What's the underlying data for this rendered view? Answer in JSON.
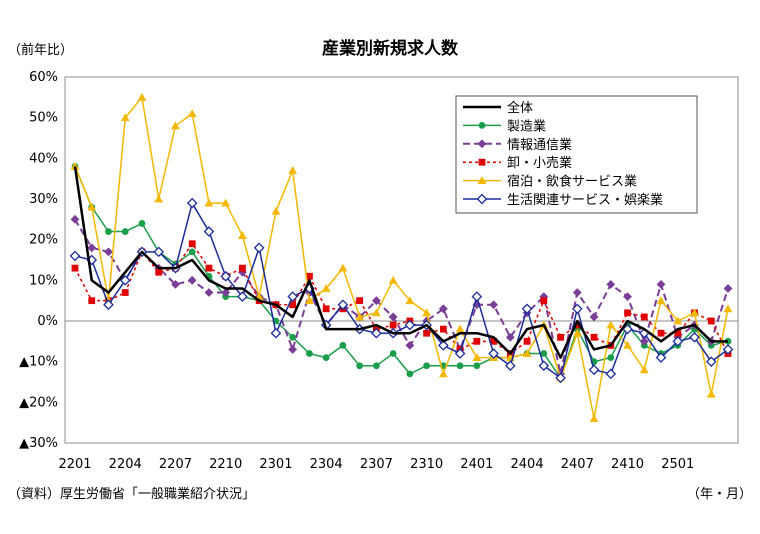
{
  "chart_data": {
    "type": "line",
    "title": "産業別新規求人数",
    "ylabel": "（前年比）",
    "xlabel": "（年・月）",
    "source": "（資料）厚生労働省「一般職業紹介状況」",
    "ylim": [
      -30,
      60
    ],
    "ytick_values": [
      60,
      50,
      40,
      30,
      20,
      10,
      0,
      -10,
      -20,
      -30
    ],
    "ytick_labels": [
      "60%",
      "50%",
      "40%",
      "30%",
      "20%",
      "10%",
      "0%",
      "▲10%",
      "▲20%",
      "▲30%"
    ],
    "xtick_labels": [
      "2201",
      "2204",
      "2207",
      "2210",
      "2301",
      "2304",
      "2307",
      "2310",
      "2401",
      "2404",
      "2407",
      "2410",
      "2501"
    ],
    "x": [
      "2201",
      "2202",
      "2203",
      "2204",
      "2205",
      "2206",
      "2207",
      "2208",
      "2209",
      "2210",
      "2211",
      "2212",
      "2301",
      "2302",
      "2303",
      "2304",
      "2305",
      "2306",
      "2307",
      "2308",
      "2309",
      "2310",
      "2311",
      "2312",
      "2401",
      "2402",
      "2403",
      "2404",
      "2405",
      "2406",
      "2407",
      "2408",
      "2409",
      "2410",
      "2411",
      "2412",
      "2501",
      "2502",
      "2503",
      "2504"
    ],
    "legend_position": "top-right",
    "grid": false,
    "series": [
      {
        "name": "全体",
        "color": "#000000",
        "marker": "none",
        "dash": "solid",
        "width": 2.5,
        "values": [
          38,
          10,
          7,
          12,
          17,
          13,
          13,
          15,
          10,
          8,
          8,
          5,
          4,
          1,
          10,
          -2,
          -2,
          -2,
          -1,
          -3,
          -3,
          -1,
          -5,
          -3,
          -3,
          -4,
          -8,
          -2,
          -1,
          -9,
          0,
          -7,
          -6,
          0,
          -2,
          -5,
          -2,
          -1,
          -5,
          -5
        ]
      },
      {
        "name": "製造業",
        "color": "#1a9e4a",
        "marker": "circle",
        "dash": "solid",
        "width": 1.5,
        "values": [
          38,
          28,
          22,
          22,
          24,
          17,
          14,
          17,
          11,
          6,
          6,
          5,
          0,
          -4,
          -8,
          -9,
          -6,
          -11,
          -11,
          -8,
          -13,
          -11,
          -11,
          -11,
          -11,
          -9,
          -9,
          -8,
          -8,
          -14,
          -2,
          -10,
          -9,
          -1,
          -6,
          -8,
          -6,
          -2,
          -6,
          -5
        ]
      },
      {
        "name": "情報通信業",
        "color": "#7a3e97",
        "marker": "diamond",
        "dash": "dash",
        "width": 2,
        "values": [
          25,
          18,
          17,
          10,
          17,
          13,
          9,
          10,
          7,
          7,
          12,
          6,
          4,
          -7,
          7,
          -1,
          4,
          1,
          5,
          1,
          -6,
          0,
          3,
          -7,
          4,
          4,
          -4,
          2,
          6,
          -13,
          7,
          1,
          9,
          6,
          -5,
          9,
          -4,
          -1,
          -5,
          8
        ]
      },
      {
        "name": "卸・小売業",
        "color": "#e00000",
        "marker": "square",
        "dash": "dot",
        "width": 1.5,
        "values": [
          13,
          5,
          5,
          7,
          17,
          12,
          13,
          19,
          13,
          11,
          13,
          5,
          4,
          4,
          11,
          3,
          3,
          5,
          -2,
          -1,
          0,
          -3,
          -2,
          -7,
          -5,
          -5,
          -8,
          -5,
          5,
          -4,
          -1,
          -4,
          -6,
          2,
          1,
          -3,
          -3,
          2,
          0,
          -8
        ]
      },
      {
        "name": "宿泊・飲食サービス業",
        "color": "#f5b800",
        "marker": "triangle",
        "dash": "solid",
        "width": 1.5,
        "values": [
          38,
          28,
          5,
          50,
          55,
          30,
          48,
          51,
          29,
          29,
          21,
          6,
          27,
          37,
          5,
          8,
          13,
          1,
          2,
          10,
          5,
          2,
          -13,
          -2,
          -9,
          -9,
          -9,
          -8,
          -1,
          -14,
          -3,
          -24,
          -1,
          -6,
          -12,
          5,
          0,
          2,
          -18,
          3
        ]
      },
      {
        "name": "生活関連サービス・娯楽業",
        "color": "#1b2c9c",
        "marker": "open-diamond",
        "dash": "solid",
        "width": 1.5,
        "values": [
          16,
          15,
          4,
          10,
          17,
          17,
          13,
          29,
          22,
          11,
          6,
          18,
          -3,
          6,
          8,
          -1,
          4,
          -2,
          -3,
          -3,
          -1,
          -1,
          -6,
          -8,
          6,
          -8,
          -11,
          3,
          -11,
          -14,
          3,
          -12,
          -13,
          -2,
          -3,
          -9,
          -5,
          -4,
          -10,
          -7
        ]
      }
    ]
  }
}
